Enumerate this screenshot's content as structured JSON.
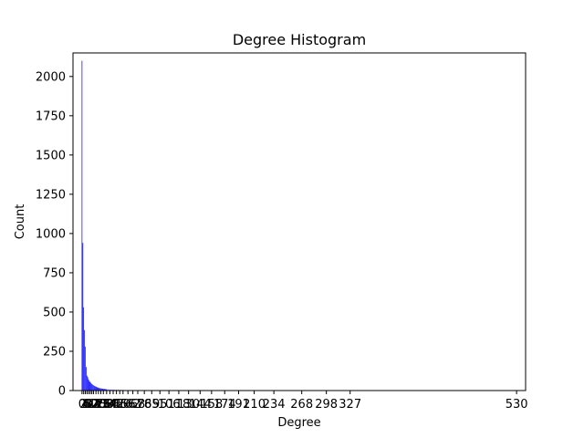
{
  "chart_data": {
    "type": "bar",
    "title": "Degree Histogram",
    "xlabel": "Degree",
    "ylabel": "Count",
    "ylim": [
      0,
      2150
    ],
    "xlim": [
      -11,
      541
    ],
    "yticks": [
      0,
      250,
      500,
      750,
      1000,
      1250,
      1500,
      1750,
      2000
    ],
    "bar_color": "#0000ff",
    "grid": false,
    "x": [
      0,
      1,
      2,
      3,
      4,
      5,
      6,
      7,
      8,
      9,
      10,
      11,
      12,
      13,
      14,
      15,
      16,
      17,
      18,
      19,
      20,
      21,
      22,
      23,
      24,
      25,
      26,
      27,
      28,
      29,
      30,
      32,
      34,
      36,
      38,
      40,
      42,
      44,
      46,
      48,
      50,
      53,
      56,
      59,
      62,
      65,
      68,
      72,
      76,
      80,
      85,
      90,
      95,
      100,
      106,
      112,
      118,
      124,
      130,
      137,
      144,
      151,
      158,
      166,
      174,
      182,
      191,
      200,
      210,
      220,
      234,
      268,
      298,
      327,
      530
    ],
    "values": [
      2100,
      940,
      530,
      385,
      280,
      150,
      95,
      85,
      70,
      60,
      55,
      48,
      42,
      38,
      34,
      30,
      27,
      25,
      22,
      20,
      18,
      16,
      15,
      14,
      13,
      12,
      11,
      10,
      9,
      9,
      8,
      7,
      7,
      6,
      6,
      5,
      5,
      5,
      4,
      4,
      4,
      3,
      3,
      3,
      3,
      2,
      2,
      2,
      2,
      2,
      2,
      2,
      2,
      1,
      1,
      1,
      1,
      1,
      1,
      1,
      1,
      1,
      1,
      1,
      1,
      1,
      1,
      1,
      1,
      1,
      1,
      1,
      1,
      1,
      1
    ],
    "xtick_labels": [
      {
        "x": 0,
        "label": "0"
      },
      {
        "x": 2,
        "label": "2"
      },
      {
        "x": 4,
        "label": "4"
      },
      {
        "x": 6,
        "label": "6"
      },
      {
        "x": 8,
        "label": "8"
      },
      {
        "x": 10,
        "label": "10"
      },
      {
        "x": 12,
        "label": "12"
      },
      {
        "x": 14,
        "label": "14"
      },
      {
        "x": 17,
        "label": "17"
      },
      {
        "x": 20,
        "label": "20"
      },
      {
        "x": 23,
        "label": "23"
      },
      {
        "x": 26,
        "label": "26"
      },
      {
        "x": 30,
        "label": "30"
      },
      {
        "x": 34,
        "label": "34"
      },
      {
        "x": 38,
        "label": "38"
      },
      {
        "x": 42,
        "label": "42"
      },
      {
        "x": 46,
        "label": "46"
      },
      {
        "x": 50,
        "label": "50"
      },
      {
        "x": 56,
        "label": "56"
      },
      {
        "x": 62,
        "label": "62"
      },
      {
        "x": 68,
        "label": "68"
      },
      {
        "x": 76,
        "label": "76"
      },
      {
        "x": 85,
        "label": "85"
      },
      {
        "x": 95,
        "label": "95"
      },
      {
        "x": 106,
        "label": "106"
      },
      {
        "x": 118,
        "label": "118"
      },
      {
        "x": 130,
        "label": "130"
      },
      {
        "x": 144,
        "label": "144"
      },
      {
        "x": 158,
        "label": "158"
      },
      {
        "x": 174,
        "label": "174"
      },
      {
        "x": 191,
        "label": "191"
      },
      {
        "x": 210,
        "label": "210"
      },
      {
        "x": 234,
        "label": "234"
      },
      {
        "x": 268,
        "label": "268"
      },
      {
        "x": 298,
        "label": "298"
      },
      {
        "x": 327,
        "label": "327"
      },
      {
        "x": 530,
        "label": "530"
      }
    ]
  }
}
